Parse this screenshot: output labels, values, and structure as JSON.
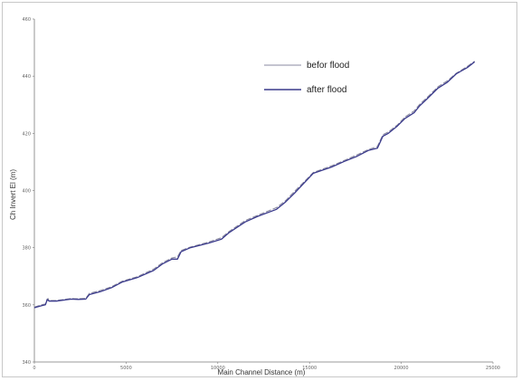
{
  "chart_data": {
    "type": "line",
    "title": "",
    "xlabel": "Main Channel Distance (m)",
    "ylabel": "Ch Invert El (m)",
    "xlim": [
      0,
      25000
    ],
    "ylim": [
      340,
      460
    ],
    "x_ticks": [
      "0",
      "5000",
      "10000",
      "15000",
      "20000",
      "25000"
    ],
    "y_ticks": [
      "340",
      "360",
      "380",
      "400",
      "420",
      "440",
      "460"
    ],
    "grid": false,
    "legend_position": "top-right",
    "series": [
      {
        "name": "befor flood",
        "color": "#8a8aa0",
        "style": "dashed",
        "x": [
          0,
          400,
          600,
          700,
          750,
          800,
          1200,
          2000,
          2400,
          2800,
          3000,
          3600,
          4200,
          4800,
          5600,
          6500,
          7000,
          7500,
          7800,
          8000,
          8500,
          9500,
          10200,
          10600,
          11500,
          12200,
          13200,
          13700,
          14200,
          14700,
          15200,
          16200,
          16900,
          17600,
          18200,
          18700,
          19000,
          19300,
          19800,
          20200,
          20700,
          21000,
          21400,
          22000,
          22500,
          23000,
          23600,
          24000
        ],
        "y": [
          359.2,
          360.0,
          360.3,
          362.0,
          362.2,
          361.5,
          361.5,
          362.2,
          362.1,
          362.3,
          364.0,
          365.0,
          366.3,
          368.3,
          369.8,
          372.5,
          374.8,
          376.4,
          376.8,
          379.0,
          380.2,
          382.0,
          383.5,
          385.6,
          389.5,
          391.4,
          394.0,
          396.5,
          399.8,
          403.0,
          406.3,
          408.6,
          410.5,
          412.5,
          414.3,
          415.4,
          419.5,
          420.5,
          423.0,
          425.7,
          427.8,
          430.1,
          432.5,
          436.3,
          438.3,
          441.0,
          443.4,
          445.2
        ]
      },
      {
        "name": "after flood",
        "color": "#3a3a8c",
        "style": "solid",
        "x": [
          0,
          400,
          600,
          700,
          750,
          800,
          1200,
          2000,
          2400,
          2800,
          3000,
          3600,
          4200,
          4800,
          5600,
          6500,
          7000,
          7500,
          7800,
          8000,
          8500,
          9500,
          10200,
          10600,
          11500,
          12200,
          13200,
          13700,
          14200,
          14700,
          15200,
          16200,
          16900,
          17600,
          18200,
          18700,
          19000,
          19300,
          19800,
          20200,
          20700,
          21000,
          21400,
          22000,
          22500,
          23000,
          23600,
          24000
        ],
        "y": [
          359.0,
          359.7,
          360.0,
          361.8,
          361.6,
          361.3,
          361.3,
          362.0,
          361.9,
          362.0,
          363.6,
          364.6,
          366.0,
          368.0,
          369.5,
          372.0,
          374.4,
          376.0,
          376.0,
          378.6,
          380.0,
          381.6,
          383.0,
          385.2,
          389.0,
          391.0,
          393.4,
          396.0,
          399.2,
          402.6,
          406.0,
          408.2,
          410.2,
          412.0,
          414.0,
          414.8,
          419.0,
          420.0,
          422.6,
          425.2,
          427.2,
          429.6,
          432.0,
          435.8,
          437.8,
          440.8,
          443.0,
          445.0
        ]
      }
    ]
  }
}
